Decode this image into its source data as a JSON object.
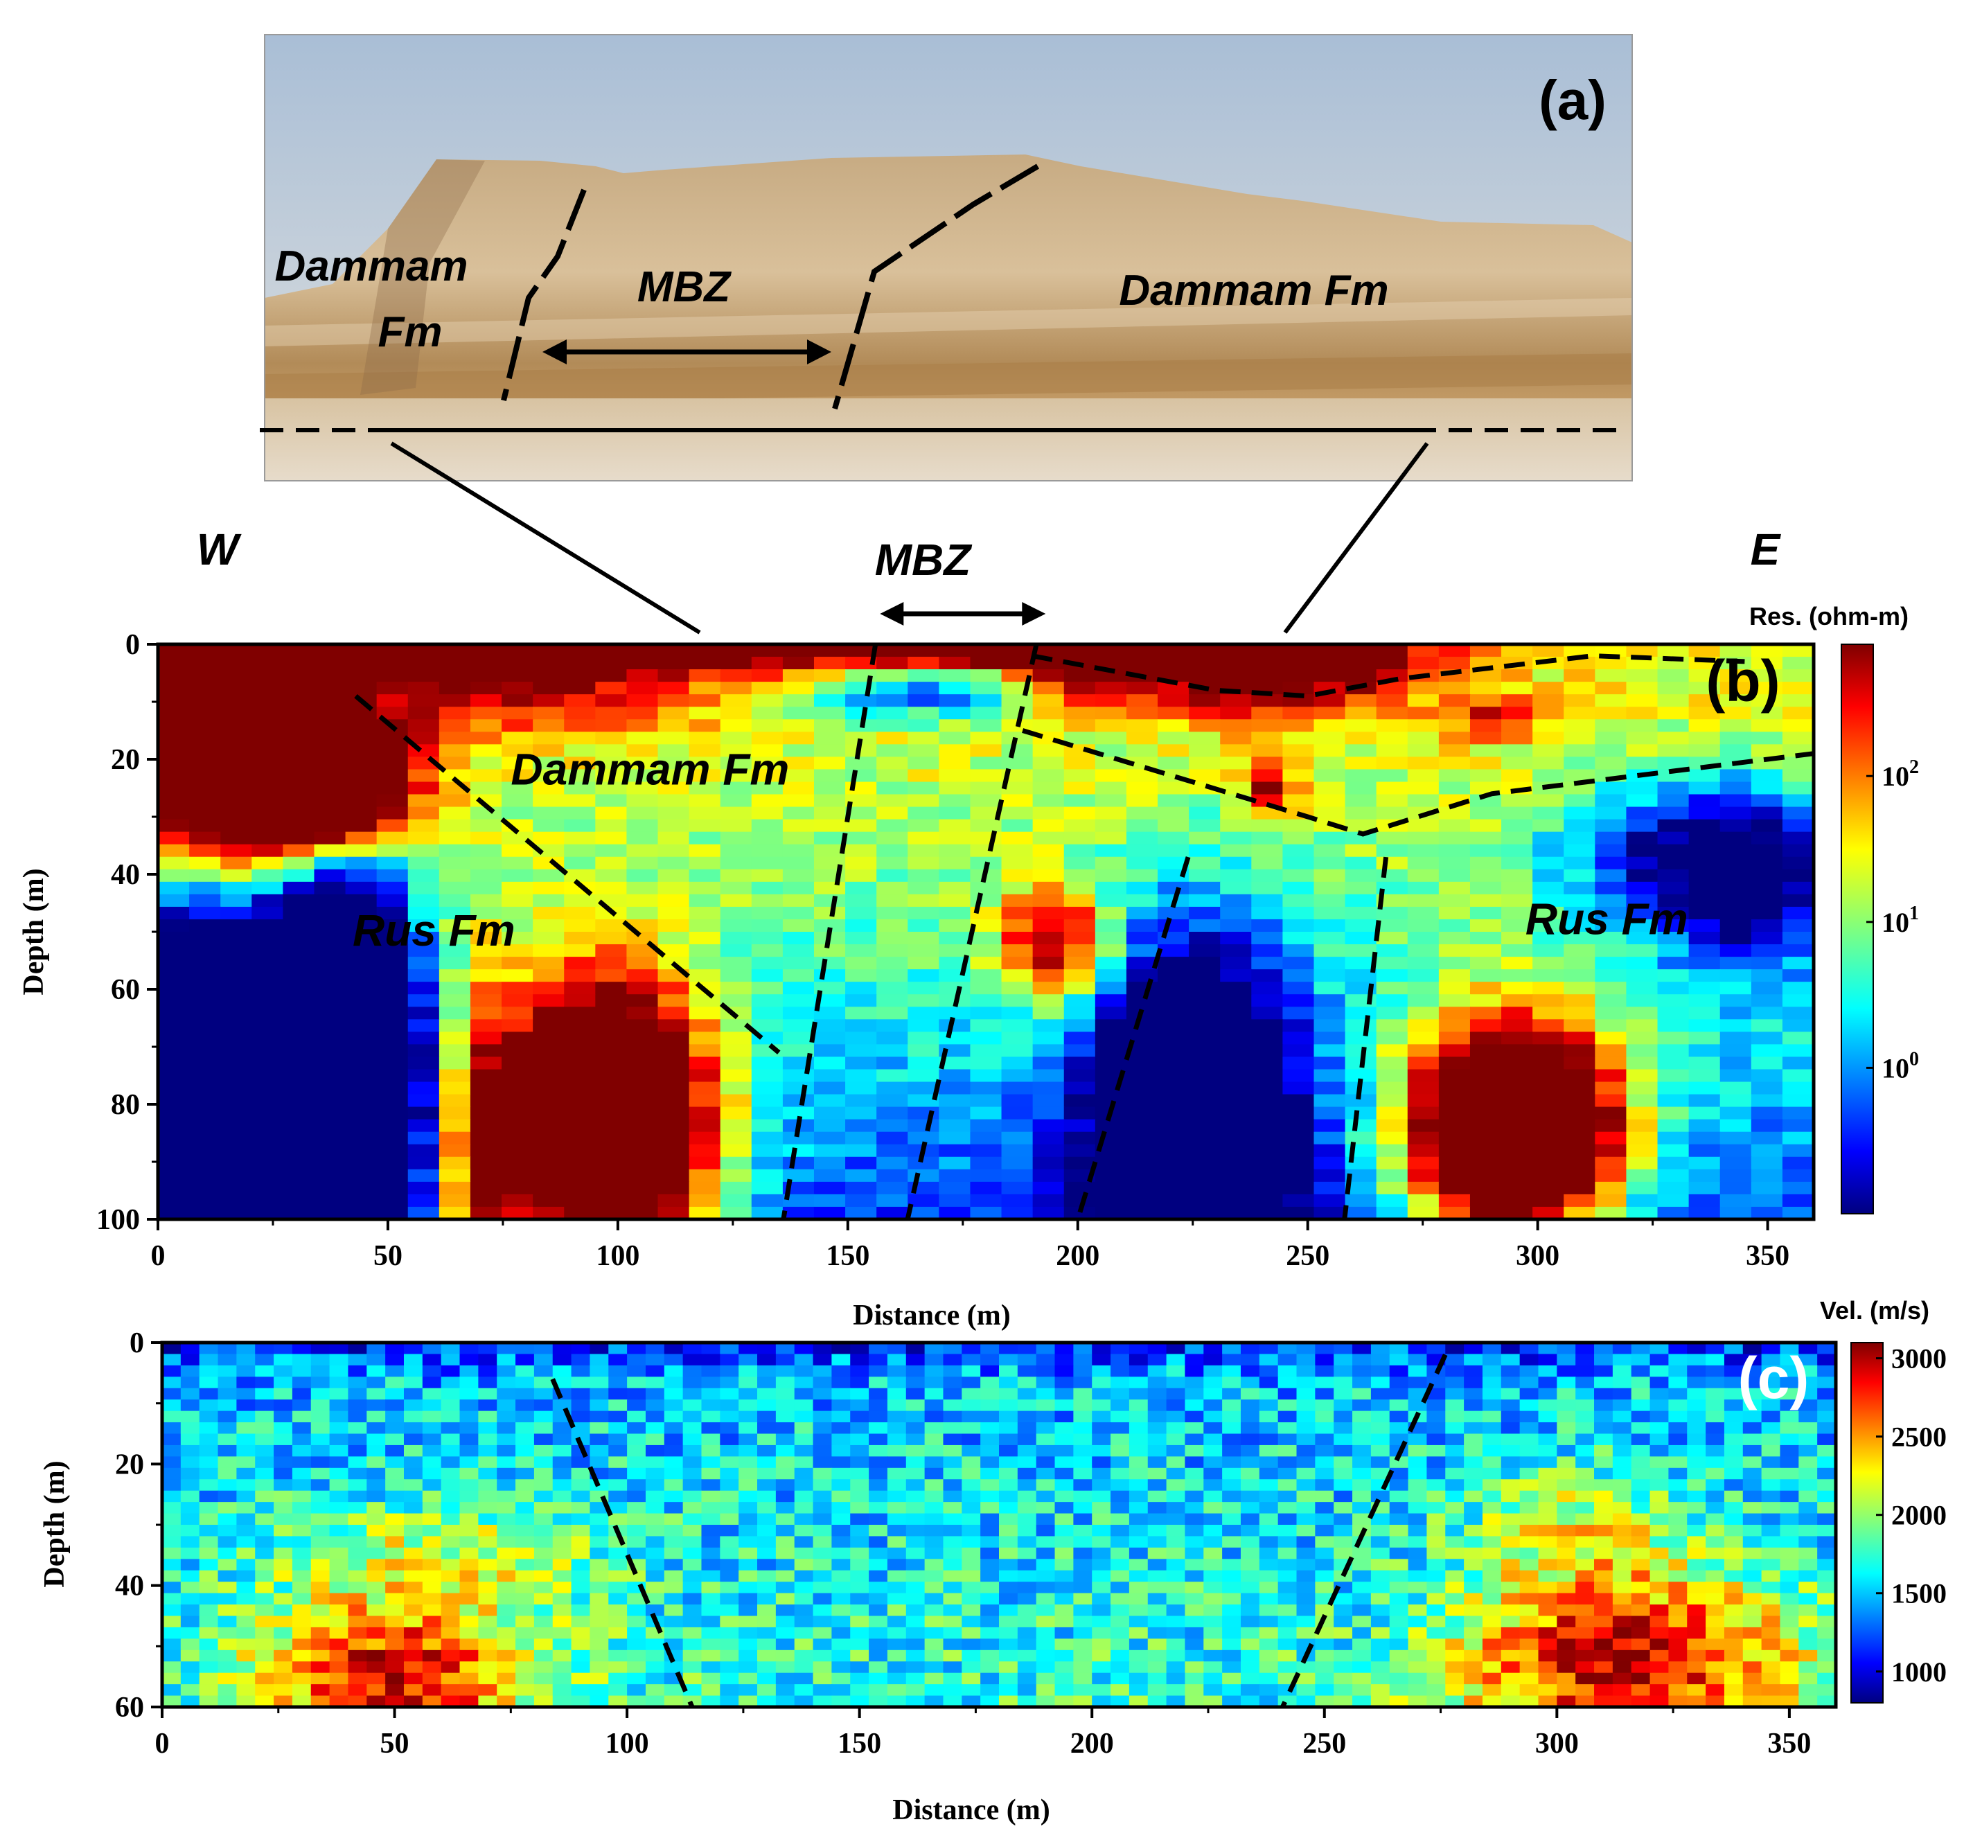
{
  "panel_a": {
    "letter": "(a)",
    "labels": {
      "dammam_left_1": "Dammam",
      "dammam_left_2": "Fm",
      "mbz": "MBZ",
      "dammam_right": "Dammam Fm"
    }
  },
  "orientation": {
    "west": "W",
    "east": "E",
    "mbz": "MBZ"
  },
  "colors": {
    "fault_line": "#000000",
    "sky_top": "#a9bed6",
    "sky_bottom": "#dfe0de",
    "rock_light": "#d9c09a",
    "rock_dark": "#a88352",
    "ground": "#d8c3a2"
  },
  "chart_data": [
    {
      "id": "b",
      "type": "heatmap",
      "letter": "(b)",
      "xlabel": "Distance (m)",
      "ylabel": "Depth (m)",
      "xlim": [
        0,
        360
      ],
      "ylim": [
        100,
        0
      ],
      "xticks": [
        0,
        50,
        100,
        150,
        200,
        250,
        300,
        350
      ],
      "yticks": [
        0,
        20,
        40,
        60,
        80,
        100
      ],
      "colorbar": {
        "title": "Res. (ohm-m)",
        "scale": "log",
        "range": [
          0.1,
          800
        ],
        "ticks": [
          {
            "value": 1,
            "base": "10",
            "exp": "0"
          },
          {
            "value": 10,
            "base": "10",
            "exp": "1"
          },
          {
            "value": 100,
            "base": "10",
            "exp": "2"
          }
        ],
        "colormap": "jet"
      },
      "annotations": [
        {
          "text": "Dammam Fm",
          "x": 107,
          "y": 22
        },
        {
          "text": "Rus Fm",
          "x": 60,
          "y": 50
        },
        {
          "text": "Rus Fm",
          "x": 315,
          "y": 48
        }
      ],
      "anomalies": [
        {
          "x": 30,
          "y": 0,
          "sx": 120,
          "sy": 5,
          "v": 1.0
        },
        {
          "x": 190,
          "y": 0,
          "sx": 40,
          "sy": 4,
          "v": 0.7
        },
        {
          "x": 250,
          "y": 2,
          "sx": 30,
          "sy": 4,
          "v": 0.5
        },
        {
          "x": 10,
          "y": 10,
          "sx": 25,
          "sy": 20,
          "v": 0.8
        },
        {
          "x": 30,
          "y": 24,
          "sx": 22,
          "sy": 12,
          "v": 1.5
        },
        {
          "x": 80,
          "y": 8,
          "sx": 40,
          "sy": 8,
          "v": 0.3
        },
        {
          "x": 165,
          "y": 8,
          "sx": 25,
          "sy": 5,
          "v": -0.4
        },
        {
          "x": 200,
          "y": 5,
          "sx": 10,
          "sy": 6,
          "v": 0.4
        },
        {
          "x": 240,
          "y": 8,
          "sx": 30,
          "sy": 6,
          "v": 0.4
        },
        {
          "x": 10,
          "y": 80,
          "sx": 30,
          "sy": 25,
          "v": -2.4
        },
        {
          "x": 40,
          "y": 65,
          "sx": 15,
          "sy": 30,
          "v": -1.0
        },
        {
          "x": 98,
          "y": 85,
          "sx": 22,
          "sy": 25,
          "v": 1.5
        },
        {
          "x": 70,
          "y": 90,
          "sx": 10,
          "sy": 30,
          "v": 0.6
        },
        {
          "x": 225,
          "y": 80,
          "sx": 22,
          "sy": 30,
          "v": -0.9
        },
        {
          "x": 195,
          "y": 52,
          "sx": 12,
          "sy": 10,
          "v": 0.6
        },
        {
          "x": 295,
          "y": 85,
          "sx": 22,
          "sy": 18,
          "v": 1.6
        },
        {
          "x": 345,
          "y": 40,
          "sx": 20,
          "sy": 15,
          "v": -0.7
        },
        {
          "x": 320,
          "y": 35,
          "sx": 20,
          "sy": 10,
          "v": -0.3
        },
        {
          "x": 242,
          "y": 24,
          "sx": 6,
          "sy": 6,
          "v": 0.4
        },
        {
          "x": 290,
          "y": 13,
          "sx": 10,
          "sy": 4,
          "v": 0.3
        }
      ],
      "faults": [
        [
          [
            43,
            9
          ],
          [
            135,
            71
          ]
        ],
        [
          [
            156,
            0
          ],
          [
            136,
            100
          ]
        ],
        [
          [
            191,
            0
          ],
          [
            163,
            100
          ]
        ],
        [
          [
            224,
            37
          ],
          [
            200,
            100
          ]
        ],
        [
          [
            267,
            37
          ],
          [
            258,
            100
          ]
        ],
        [
          [
            190,
            2
          ],
          [
            230,
            8
          ],
          [
            250,
            9
          ],
          [
            270,
            6
          ],
          [
            312,
            2
          ],
          [
            345,
            3
          ]
        ],
        [
          [
            188,
            15
          ],
          [
            250,
            30
          ],
          [
            262,
            33
          ],
          [
            290,
            26
          ],
          [
            360,
            19
          ]
        ]
      ],
      "mbz_arrow": [
        157,
        193
      ]
    },
    {
      "id": "c",
      "type": "heatmap",
      "letter": "(c)",
      "xlabel": "Distance (m)",
      "ylabel": "Depth (m)",
      "xlim": [
        0,
        360
      ],
      "ylim": [
        60,
        0
      ],
      "xticks": [
        0,
        50,
        100,
        150,
        200,
        250,
        300,
        350
      ],
      "yticks": [
        0,
        20,
        40,
        60
      ],
      "colorbar": {
        "title": "Vel. (m/s)",
        "scale": "linear",
        "range": [
          800,
          3100
        ],
        "ticks": [
          {
            "value": 1000,
            "label": "1000"
          },
          {
            "value": 1500,
            "label": "1500"
          },
          {
            "value": 2000,
            "label": "2000"
          },
          {
            "value": 2500,
            "label": "2500"
          },
          {
            "value": 3000,
            "label": "3000"
          }
        ],
        "colormap": "jet"
      },
      "anomalies": [
        {
          "x": 50,
          "y": 55,
          "sx": 30,
          "sy": 12,
          "v": 1.0
        },
        {
          "x": 315,
          "y": 52,
          "sx": 35,
          "sy": 14,
          "v": 1.1
        },
        {
          "x": 60,
          "y": 35,
          "sx": 35,
          "sy": 10,
          "v": 0.4
        },
        {
          "x": 305,
          "y": 30,
          "sx": 25,
          "sy": 10,
          "v": 0.4
        }
      ],
      "faults": [
        [
          [
            84,
            6
          ],
          [
            114,
            60
          ]
        ],
        [
          [
            276,
            2
          ],
          [
            241,
            60
          ]
        ]
      ]
    }
  ]
}
